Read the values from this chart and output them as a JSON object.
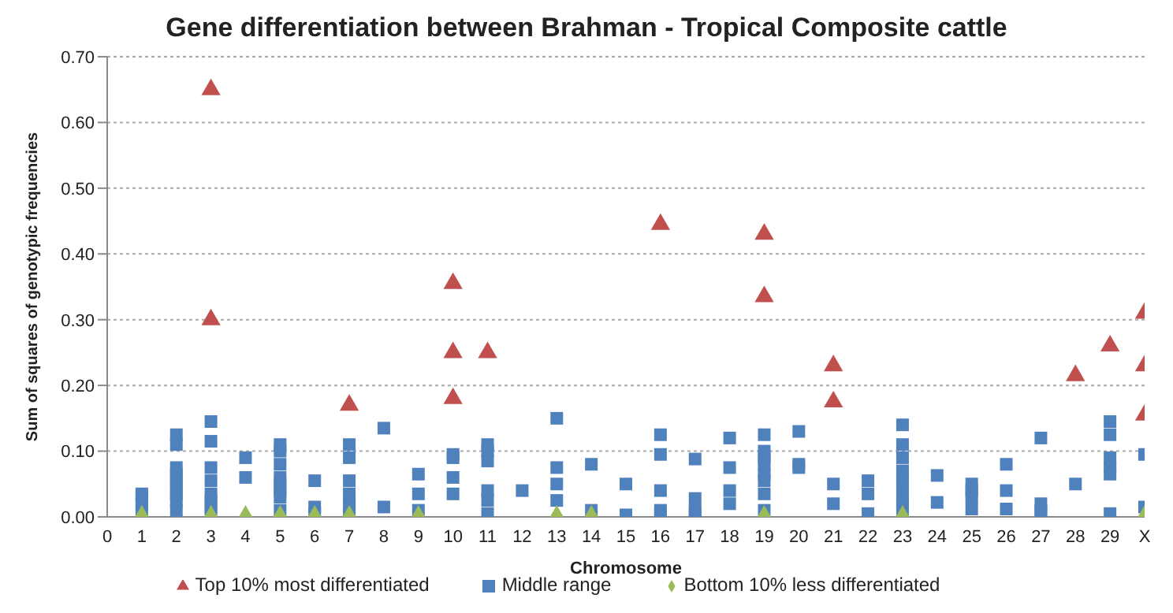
{
  "chart_data": {
    "type": "scatter",
    "title": "Gene differentiation between Brahman - Tropical Composite cattle",
    "xlabel": "Chromosome",
    "ylabel": "Sum of squares of genotypic frequencies",
    "xlim": [
      0,
      30
    ],
    "xticks": [
      0,
      1,
      2,
      3,
      4,
      5,
      6,
      7,
      8,
      9,
      10,
      11,
      12,
      13,
      14,
      15,
      16,
      17,
      18,
      19,
      20,
      21,
      22,
      23,
      24,
      25,
      26,
      27,
      28,
      29,
      {
        "value": 30,
        "label": "X"
      }
    ],
    "ylim": [
      0,
      0.7
    ],
    "yticks": [
      {
        "value": 0,
        "label": "0.00"
      },
      {
        "value": 0.1,
        "label": "0.10"
      },
      {
        "value": 0.2,
        "label": "0.20"
      },
      {
        "value": 0.3,
        "label": "0.30"
      },
      {
        "value": 0.4,
        "label": "0.40"
      },
      {
        "value": 0.5,
        "label": "0.50"
      },
      {
        "value": 0.6,
        "label": "0.60"
      },
      {
        "value": 0.7,
        "label": "0.70"
      }
    ],
    "grid": "y",
    "legend": "bottom",
    "series": [
      {
        "name": "Top 10% most differentiated",
        "color": "#c0504d",
        "marker": "triangle",
        "x": [
          3,
          3,
          7,
          10,
          10,
          10,
          11,
          16,
          19,
          19,
          21,
          21,
          28,
          29,
          30,
          30,
          30
        ],
        "values": [
          0.65,
          0.3,
          0.17,
          0.355,
          0.25,
          0.18,
          0.25,
          0.445,
          0.43,
          0.335,
          0.23,
          0.175,
          0.215,
          0.26,
          0.31,
          0.23,
          0.155
        ]
      },
      {
        "name": "Middle range",
        "color": "#4f81bd",
        "marker": "square",
        "x": [
          1,
          1,
          1,
          1,
          2,
          2,
          2,
          2,
          2,
          2,
          2,
          2,
          2,
          3,
          3,
          3,
          3,
          3,
          3,
          3,
          3,
          4,
          4,
          5,
          5,
          5,
          5,
          5,
          5,
          5,
          5,
          6,
          6,
          6,
          7,
          7,
          7,
          7,
          7,
          7,
          7,
          8,
          8,
          9,
          9,
          9,
          10,
          10,
          10,
          10,
          11,
          11,
          11,
          11,
          11,
          11,
          12,
          13,
          13,
          13,
          13,
          14,
          14,
          15,
          15,
          16,
          16,
          16,
          16,
          16,
          17,
          17,
          17,
          17,
          18,
          18,
          18,
          18,
          19,
          19,
          19,
          19,
          19,
          19,
          19,
          19,
          20,
          20,
          20,
          21,
          21,
          22,
          22,
          22,
          23,
          23,
          23,
          23,
          23,
          23,
          23,
          23,
          23,
          24,
          24,
          25,
          25,
          25,
          25,
          26,
          26,
          26,
          27,
          27,
          27,
          27,
          28,
          29,
          29,
          29,
          29,
          29,
          29,
          30,
          30
        ],
        "values": [
          0.035,
          0.03,
          0.02,
          0.01,
          0.125,
          0.11,
          0.075,
          0.065,
          0.055,
          0.045,
          0.035,
          0.025,
          0.01,
          0.145,
          0.115,
          0.075,
          0.055,
          0.035,
          0.025,
          0.015,
          0.005,
          0.09,
          0.06,
          0.11,
          0.1,
          0.08,
          0.06,
          0.05,
          0.04,
          0.03,
          0.01,
          0.055,
          0.015,
          0.005,
          0.11,
          0.09,
          0.055,
          0.035,
          0.025,
          0.015,
          0.005,
          0.135,
          0.015,
          0.065,
          0.035,
          0.01,
          0.095,
          0.09,
          0.06,
          0.035,
          0.11,
          0.1,
          0.085,
          0.04,
          0.025,
          0.005,
          0.04,
          0.15,
          0.075,
          0.05,
          0.025,
          0.08,
          0.01,
          0.05,
          0.003,
          0.125,
          0.095,
          0.04,
          0.01,
          0.005,
          0.088,
          0.028,
          0.01,
          0.005,
          0.12,
          0.075,
          0.04,
          0.02,
          0.125,
          0.1,
          0.09,
          0.08,
          0.065,
          0.055,
          0.035,
          0.01,
          0.13,
          0.08,
          0.075,
          0.05,
          0.02,
          0.055,
          0.035,
          0.005,
          0.14,
          0.11,
          0.09,
          0.07,
          0.06,
          0.045,
          0.03,
          0.02,
          0.01,
          0.063,
          0.022,
          0.05,
          0.04,
          0.03,
          0.012,
          0.08,
          0.04,
          0.012,
          0.12,
          0.02,
          0.01,
          0.003,
          0.05,
          0.145,
          0.125,
          0.09,
          0.075,
          0.065,
          0.005,
          0.095,
          0.015
        ]
      },
      {
        "name": "Bottom 10% less differentiated",
        "color": "#9bbb59",
        "marker": "diamond",
        "x": [
          1,
          3,
          4,
          5,
          6,
          7,
          9,
          13,
          14,
          19,
          23,
          30
        ],
        "values": [
          0,
          0,
          0,
          0,
          0,
          0,
          0,
          0,
          0,
          0,
          0,
          0
        ]
      }
    ]
  }
}
